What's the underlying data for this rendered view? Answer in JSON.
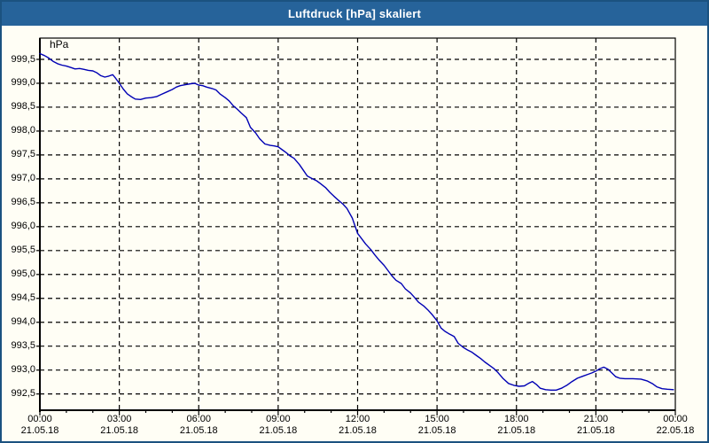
{
  "window": {
    "title": "Luftdruck [hPa] skaliert"
  },
  "chart_data": {
    "type": "line",
    "title": "Luftdruck [hPa] skaliert",
    "unit_label": "hPa",
    "xlabel": "",
    "ylabel": "hPa",
    "grid": "dashed",
    "legend": "none",
    "xlim_hours": [
      0,
      24
    ],
    "ylim": [
      992.16,
      999.945
    ],
    "line_color": "#0000b4",
    "y_ticks": [
      {
        "value": 999.5,
        "label": "999,5"
      },
      {
        "value": 999.0,
        "label": "999,0"
      },
      {
        "value": 998.5,
        "label": "998,5"
      },
      {
        "value": 998.0,
        "label": "998,0"
      },
      {
        "value": 997.5,
        "label": "997,5"
      },
      {
        "value": 997.0,
        "label": "997,0"
      },
      {
        "value": 996.5,
        "label": "996,5"
      },
      {
        "value": 996.0,
        "label": "996,0"
      },
      {
        "value": 995.5,
        "label": "995,5"
      },
      {
        "value": 995.0,
        "label": "995,0"
      },
      {
        "value": 994.5,
        "label": "994,5"
      },
      {
        "value": 994.0,
        "label": "994,0"
      },
      {
        "value": 993.5,
        "label": "993,5"
      },
      {
        "value": 993.0,
        "label": "993,0"
      },
      {
        "value": 992.5,
        "label": "992,5"
      }
    ],
    "x_ticks": [
      {
        "hour": 0,
        "time": "00:00",
        "date": "21.05.18"
      },
      {
        "hour": 3,
        "time": "03:00",
        "date": "21.05.18"
      },
      {
        "hour": 6,
        "time": "06:00",
        "date": "21.05.18"
      },
      {
        "hour": 9,
        "time": "09:00",
        "date": "21.05.18"
      },
      {
        "hour": 12,
        "time": "12:00",
        "date": "21.05.18"
      },
      {
        "hour": 15,
        "time": "15:00",
        "date": "21.05.18"
      },
      {
        "hour": 18,
        "time": "18:00",
        "date": "21.05.18"
      },
      {
        "hour": 21,
        "time": "21:00",
        "date": "21.05.18"
      },
      {
        "hour": 24,
        "time": "00:00",
        "date": "22.05.18"
      }
    ],
    "minor_tick_hours": 1,
    "series": [
      {
        "name": "Luftdruck",
        "points": [
          [
            0.0,
            999.62
          ],
          [
            0.17,
            999.58
          ],
          [
            0.33,
            999.53
          ],
          [
            0.5,
            999.46
          ],
          [
            0.67,
            999.41
          ],
          [
            0.83,
            999.38
          ],
          [
            1.0,
            999.36
          ],
          [
            1.17,
            999.33
          ],
          [
            1.33,
            999.3
          ],
          [
            1.5,
            999.31
          ],
          [
            1.67,
            999.29
          ],
          [
            1.83,
            999.27
          ],
          [
            2.0,
            999.26
          ],
          [
            2.15,
            999.22
          ],
          [
            2.3,
            999.16
          ],
          [
            2.45,
            999.13
          ],
          [
            2.6,
            999.15
          ],
          [
            2.75,
            999.18
          ],
          [
            2.87,
            999.1
          ],
          [
            3.0,
            999.0
          ],
          [
            3.15,
            998.88
          ],
          [
            3.3,
            998.78
          ],
          [
            3.45,
            998.72
          ],
          [
            3.6,
            998.67
          ],
          [
            3.8,
            998.66
          ],
          [
            4.0,
            998.69
          ],
          [
            4.2,
            998.7
          ],
          [
            4.4,
            998.72
          ],
          [
            4.6,
            998.77
          ],
          [
            4.8,
            998.82
          ],
          [
            5.0,
            998.87
          ],
          [
            5.15,
            998.92
          ],
          [
            5.3,
            998.95
          ],
          [
            5.5,
            998.97
          ],
          [
            5.7,
            998.99
          ],
          [
            5.85,
            999.0
          ],
          [
            6.0,
            998.96
          ],
          [
            6.15,
            998.95
          ],
          [
            6.3,
            998.92
          ],
          [
            6.5,
            998.89
          ],
          [
            6.65,
            998.86
          ],
          [
            6.8,
            998.78
          ],
          [
            7.0,
            998.7
          ],
          [
            7.15,
            998.63
          ],
          [
            7.3,
            998.53
          ],
          [
            7.45,
            998.46
          ],
          [
            7.6,
            998.38
          ],
          [
            7.8,
            998.28
          ],
          [
            7.95,
            998.08
          ],
          [
            8.15,
            997.96
          ],
          [
            8.3,
            997.84
          ],
          [
            8.5,
            997.73
          ],
          [
            8.7,
            997.7
          ],
          [
            8.85,
            997.69
          ],
          [
            9.0,
            997.67
          ],
          [
            9.15,
            997.61
          ],
          [
            9.3,
            997.55
          ],
          [
            9.45,
            997.48
          ],
          [
            9.6,
            997.43
          ],
          [
            9.8,
            997.3
          ],
          [
            9.95,
            997.18
          ],
          [
            10.1,
            997.06
          ],
          [
            10.3,
            997.0
          ],
          [
            10.45,
            996.96
          ],
          [
            10.6,
            996.9
          ],
          [
            10.8,
            996.81
          ],
          [
            10.95,
            996.72
          ],
          [
            11.1,
            996.64
          ],
          [
            11.3,
            996.54
          ],
          [
            11.45,
            996.47
          ],
          [
            11.6,
            996.38
          ],
          [
            11.8,
            996.18
          ],
          [
            12.0,
            995.86
          ],
          [
            12.15,
            995.75
          ],
          [
            12.3,
            995.64
          ],
          [
            12.5,
            995.52
          ],
          [
            12.65,
            995.41
          ],
          [
            12.8,
            995.31
          ],
          [
            13.0,
            995.19
          ],
          [
            13.15,
            995.08
          ],
          [
            13.3,
            994.97
          ],
          [
            13.45,
            994.88
          ],
          [
            13.65,
            994.81
          ],
          [
            13.8,
            994.7
          ],
          [
            14.0,
            994.61
          ],
          [
            14.15,
            994.52
          ],
          [
            14.3,
            994.42
          ],
          [
            14.5,
            994.34
          ],
          [
            14.65,
            994.26
          ],
          [
            14.8,
            994.17
          ],
          [
            15.0,
            994.03
          ],
          [
            15.15,
            993.88
          ],
          [
            15.3,
            993.81
          ],
          [
            15.45,
            993.76
          ],
          [
            15.65,
            993.7
          ],
          [
            15.8,
            993.56
          ],
          [
            16.0,
            993.47
          ],
          [
            16.15,
            993.42
          ],
          [
            16.3,
            993.38
          ],
          [
            16.5,
            993.3
          ],
          [
            16.65,
            993.24
          ],
          [
            16.8,
            993.17
          ],
          [
            17.0,
            993.09
          ],
          [
            17.15,
            993.03
          ],
          [
            17.3,
            992.95
          ],
          [
            17.5,
            992.82
          ],
          [
            17.7,
            992.72
          ],
          [
            17.9,
            992.68
          ],
          [
            18.1,
            992.66
          ],
          [
            18.3,
            992.67
          ],
          [
            18.45,
            992.72
          ],
          [
            18.6,
            992.76
          ],
          [
            18.75,
            992.7
          ],
          [
            18.9,
            992.62
          ],
          [
            19.1,
            992.59
          ],
          [
            19.3,
            992.58
          ],
          [
            19.5,
            992.58
          ],
          [
            19.7,
            992.62
          ],
          [
            19.9,
            992.68
          ],
          [
            20.1,
            992.76
          ],
          [
            20.3,
            992.83
          ],
          [
            20.5,
            992.87
          ],
          [
            20.7,
            992.91
          ],
          [
            20.85,
            992.94
          ],
          [
            21.0,
            992.98
          ],
          [
            21.15,
            993.03
          ],
          [
            21.3,
            993.06
          ],
          [
            21.45,
            993.02
          ],
          [
            21.6,
            992.94
          ],
          [
            21.75,
            992.86
          ],
          [
            21.9,
            992.83
          ],
          [
            22.1,
            992.82
          ],
          [
            22.4,
            992.82
          ],
          [
            22.7,
            992.81
          ],
          [
            22.95,
            992.77
          ],
          [
            23.15,
            992.71
          ],
          [
            23.3,
            992.65
          ],
          [
            23.5,
            992.61
          ],
          [
            23.7,
            992.6
          ],
          [
            23.93,
            992.59
          ]
        ]
      }
    ]
  },
  "colors": {
    "titlebar": "#26639a",
    "frame": "#1b5280",
    "background": "#fffef5",
    "grid": "#000000",
    "line": "#0000b4",
    "text": "#000000"
  }
}
